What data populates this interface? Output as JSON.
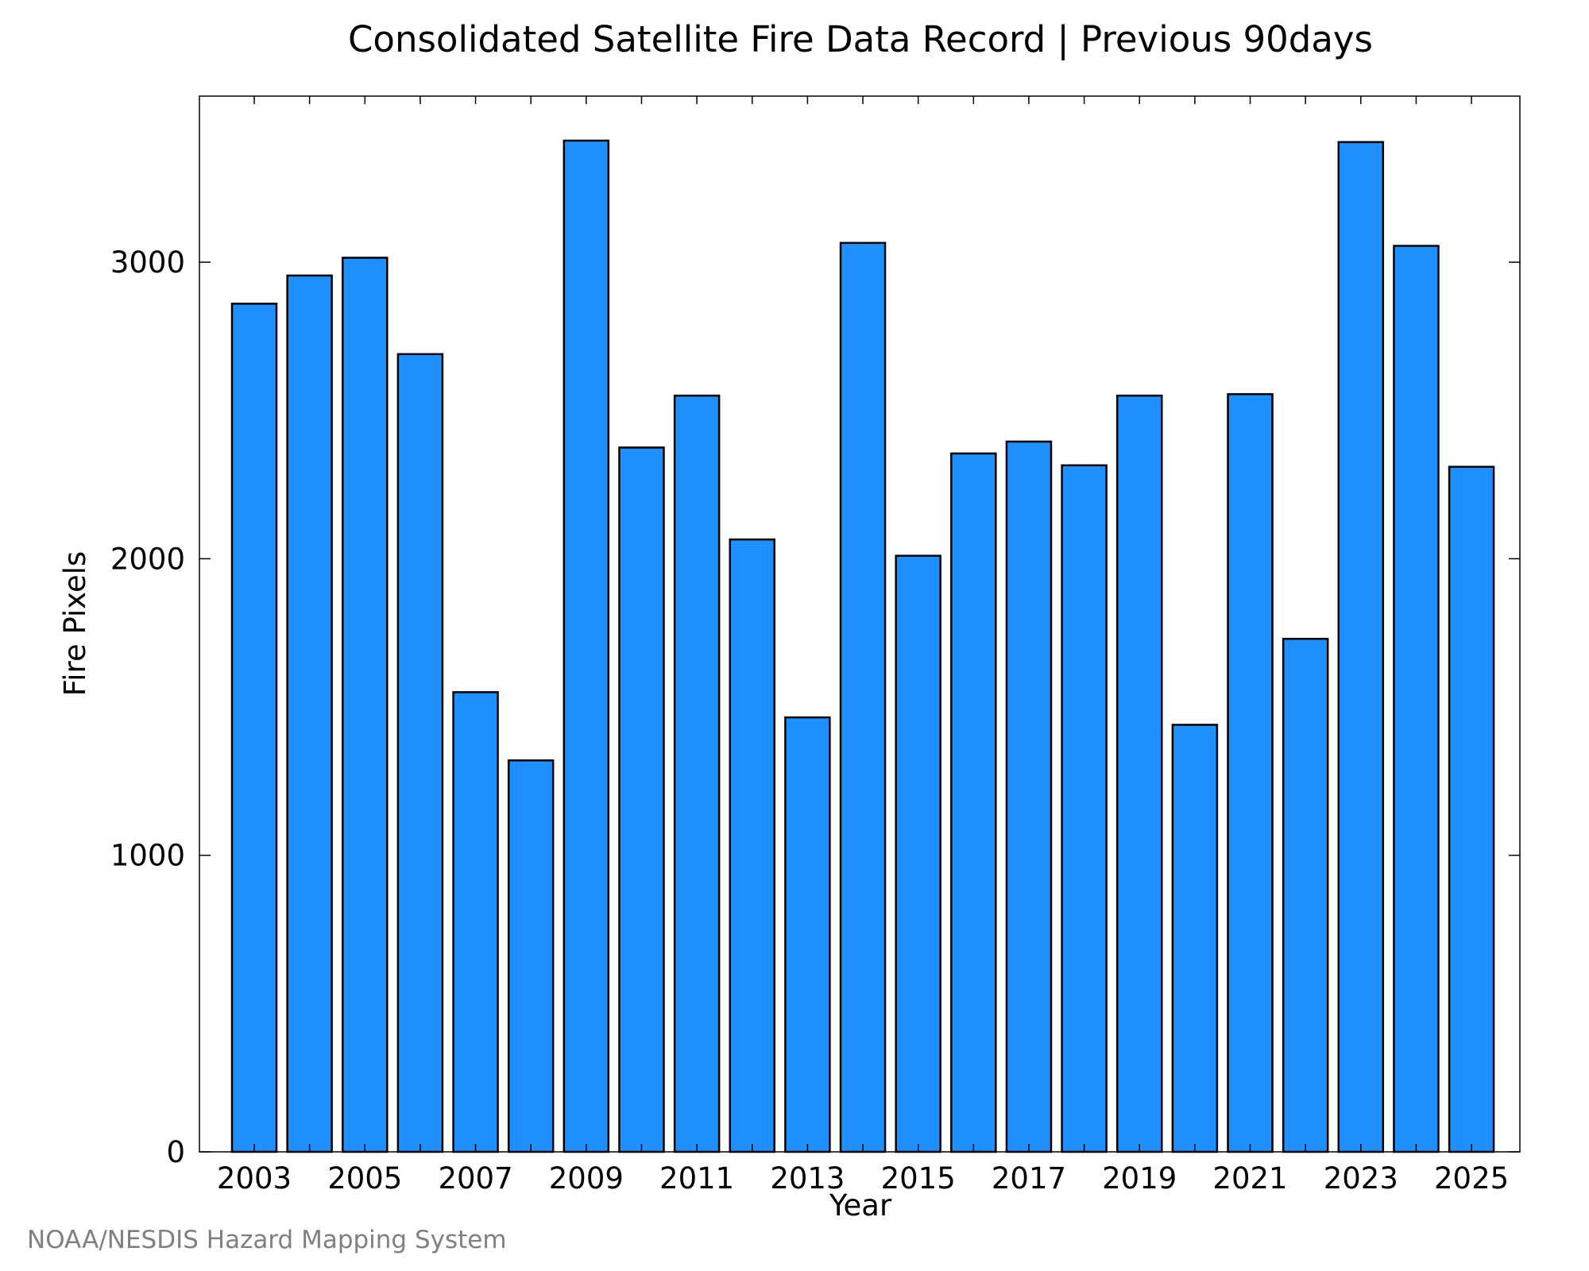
{
  "chart_data": {
    "type": "bar",
    "title": "Consolidated Satellite Fire Data Record | Previous 90days",
    "xlabel": "Year",
    "ylabel": "Fire Pixels",
    "categories": [
      "2003",
      "2004",
      "2005",
      "2006",
      "2007",
      "2008",
      "2009",
      "2010",
      "2011",
      "2012",
      "2013",
      "2014",
      "2015",
      "2016",
      "2017",
      "2018",
      "2019",
      "2020",
      "2021",
      "2022",
      "2023",
      "2024",
      "2025"
    ],
    "values": [
      2860,
      2955,
      3015,
      2690,
      1550,
      1320,
      3410,
      2375,
      2550,
      2065,
      1465,
      3065,
      2010,
      2355,
      2395,
      2315,
      2550,
      1440,
      2555,
      1730,
      3405,
      3055,
      2310
    ],
    "ylim": [
      0,
      3560
    ],
    "yticks": [
      0,
      1000,
      2000,
      3000
    ],
    "xtick_labels": [
      "2003",
      "2005",
      "2007",
      "2009",
      "2011",
      "2013",
      "2015",
      "2017",
      "2019",
      "2021",
      "2023",
      "2025"
    ],
    "grid": false,
    "bar_color": "#1e90ff",
    "edge_color": "#000000"
  },
  "credit": "NOAA/NESDIS Hazard Mapping System"
}
